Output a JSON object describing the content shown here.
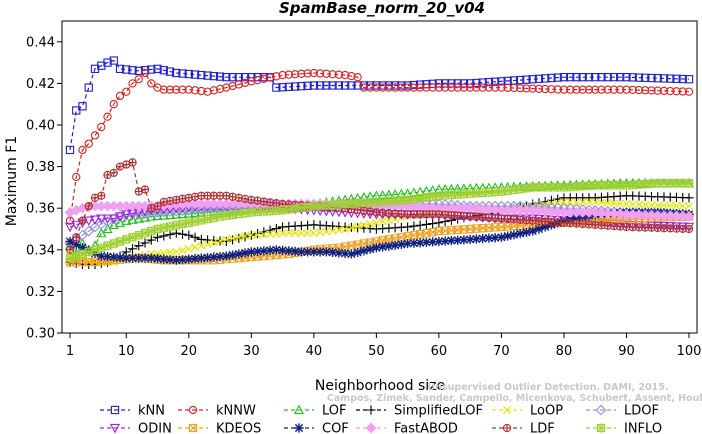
{
  "chart_data": {
    "type": "line",
    "title": "SpamBase_norm_20_v04",
    "xlabel": "Neighborhood size",
    "ylabel": "Maximum F1",
    "xlim": [
      1,
      100
    ],
    "ylim": [
      0.3,
      0.45
    ],
    "xticks": [
      1,
      10,
      20,
      30,
      40,
      50,
      60,
      70,
      80,
      90,
      100
    ],
    "yticks": [
      "0.30",
      "0.32",
      "0.34",
      "0.36",
      "0.38",
      "0.40",
      "0.42",
      "0.44"
    ],
    "grid": false,
    "legend_position": "bottom",
    "watermark": [
      "Campos, Zimek, Sander, Campello, Micenkova, Schubert, Assent, Houle",
      "Unsupervised Outlier Detection. DAMI, 2015."
    ],
    "series": [
      {
        "name": "kNN",
        "color": "#2020d0",
        "marker": "square",
        "x": [
          1,
          2,
          3,
          5,
          7,
          8,
          9,
          12,
          15,
          18,
          22,
          26,
          30,
          33,
          34,
          40,
          45,
          50,
          55,
          60,
          65,
          70,
          80,
          90,
          100
        ],
        "y": [
          0.388,
          0.407,
          0.409,
          0.427,
          0.43,
          0.431,
          0.427,
          0.426,
          0.427,
          0.425,
          0.424,
          0.423,
          0.423,
          0.423,
          0.418,
          0.419,
          0.419,
          0.419,
          0.419,
          0.42,
          0.42,
          0.421,
          0.423,
          0.423,
          0.422
        ]
      },
      {
        "name": "kNNW",
        "color": "#e02020",
        "marker": "circle",
        "x": [
          1,
          2,
          3,
          4,
          5,
          6,
          7,
          8,
          9,
          10,
          11,
          12,
          13,
          14,
          15,
          16,
          18,
          20,
          23,
          26,
          30,
          35,
          40,
          45,
          47,
          48,
          50,
          60,
          70,
          80,
          90,
          100
        ],
        "y": [
          0.354,
          0.375,
          0.388,
          0.391,
          0.395,
          0.399,
          0.404,
          0.41,
          0.414,
          0.416,
          0.42,
          0.422,
          0.425,
          0.42,
          0.418,
          0.417,
          0.417,
          0.417,
          0.416,
          0.418,
          0.421,
          0.424,
          0.425,
          0.424,
          0.423,
          0.418,
          0.418,
          0.418,
          0.418,
          0.417,
          0.417,
          0.416
        ]
      },
      {
        "name": "LOF",
        "color": "#20c020",
        "marker": "triangle",
        "x": [
          1,
          2,
          3,
          4,
          5,
          6,
          8,
          10,
          14,
          18,
          22,
          26,
          30,
          35,
          40,
          45,
          50,
          55,
          60,
          70,
          80,
          90,
          100
        ],
        "y": [
          0.342,
          0.338,
          0.343,
          0.34,
          0.342,
          0.348,
          0.352,
          0.354,
          0.356,
          0.357,
          0.358,
          0.359,
          0.36,
          0.362,
          0.362,
          0.364,
          0.366,
          0.367,
          0.369,
          0.37,
          0.371,
          0.372,
          0.372
        ]
      },
      {
        "name": "SimplifiedLOF",
        "color": "#000000",
        "marker": "plus",
        "x": [
          1,
          3,
          5,
          7,
          9,
          10,
          12,
          15,
          18,
          20,
          22,
          26,
          30,
          35,
          40,
          45,
          50,
          55,
          60,
          65,
          70,
          75,
          80,
          85,
          90,
          100
        ],
        "y": [
          0.334,
          0.333,
          0.333,
          0.334,
          0.337,
          0.339,
          0.342,
          0.346,
          0.348,
          0.347,
          0.345,
          0.344,
          0.347,
          0.351,
          0.352,
          0.351,
          0.35,
          0.351,
          0.353,
          0.356,
          0.358,
          0.362,
          0.365,
          0.365,
          0.366,
          0.365
        ]
      },
      {
        "name": "LoOP",
        "color": "#e6e600",
        "marker": "cross",
        "x": [
          1,
          3,
          5,
          8,
          10,
          14,
          18,
          22,
          26,
          30,
          35,
          40,
          45,
          50,
          55,
          60,
          65,
          70,
          75,
          80,
          85,
          90,
          100
        ],
        "y": [
          0.338,
          0.336,
          0.334,
          0.334,
          0.336,
          0.338,
          0.339,
          0.342,
          0.345,
          0.347,
          0.348,
          0.348,
          0.35,
          0.353,
          0.356,
          0.358,
          0.359,
          0.36,
          0.361,
          0.363,
          0.363,
          0.362,
          0.361
        ]
      },
      {
        "name": "LDOF",
        "color": "#9090e0",
        "marker": "diamond",
        "x": [
          1,
          3,
          5,
          8,
          10,
          15,
          20,
          25,
          30,
          35,
          40,
          45,
          50,
          55,
          60,
          65,
          70,
          75,
          80,
          85,
          90,
          100
        ],
        "y": [
          0.343,
          0.347,
          0.351,
          0.355,
          0.357,
          0.358,
          0.359,
          0.36,
          0.36,
          0.36,
          0.361,
          0.362,
          0.362,
          0.362,
          0.362,
          0.361,
          0.361,
          0.361,
          0.36,
          0.359,
          0.358,
          0.357
        ]
      },
      {
        "name": "ODIN",
        "color": "#a020e0",
        "marker": "triangle-down",
        "x": [
          1,
          2,
          4,
          6,
          8,
          10,
          14,
          18,
          22,
          26,
          30,
          35,
          40,
          45,
          50,
          55,
          60,
          65,
          70,
          75,
          80,
          85,
          90,
          100
        ],
        "y": [
          0.351,
          0.352,
          0.354,
          0.355,
          0.355,
          0.357,
          0.359,
          0.36,
          0.361,
          0.361,
          0.361,
          0.36,
          0.359,
          0.358,
          0.357,
          0.357,
          0.357,
          0.356,
          0.355,
          0.355,
          0.354,
          0.353,
          0.352,
          0.351
        ]
      },
      {
        "name": "KDEOS",
        "color": "#f0a020",
        "marker": "square-x",
        "x": [
          1,
          4,
          8,
          12,
          16,
          20,
          24,
          28,
          32,
          36,
          40,
          44,
          48,
          52,
          56,
          60,
          65,
          70,
          75,
          80,
          85,
          90,
          100
        ],
        "y": [
          0.334,
          0.334,
          0.335,
          0.336,
          0.335,
          0.335,
          0.335,
          0.336,
          0.337,
          0.338,
          0.34,
          0.341,
          0.343,
          0.345,
          0.347,
          0.349,
          0.35,
          0.351,
          0.352,
          0.353,
          0.354,
          0.355,
          0.356
        ]
      },
      {
        "name": "COF",
        "color": "#102080",
        "marker": "asterisk",
        "x": [
          1,
          3,
          6,
          10,
          14,
          18,
          22,
          26,
          30,
          34,
          38,
          42,
          46,
          50,
          55,
          60,
          65,
          70,
          75,
          80,
          85,
          90,
          95,
          100
        ],
        "y": [
          0.344,
          0.341,
          0.337,
          0.336,
          0.336,
          0.335,
          0.336,
          0.337,
          0.339,
          0.34,
          0.339,
          0.339,
          0.338,
          0.341,
          0.343,
          0.344,
          0.345,
          0.346,
          0.349,
          0.354,
          0.357,
          0.358,
          0.358,
          0.357
        ]
      },
      {
        "name": "FastABOD",
        "color": "#f0a0f0",
        "marker": "diamond-filled",
        "x": [
          1,
          3,
          5,
          8,
          10,
          15,
          20,
          25,
          30,
          35,
          40,
          45,
          50,
          55,
          60,
          65,
          70,
          75,
          80,
          85,
          90,
          100
        ],
        "y": [
          0.358,
          0.36,
          0.361,
          0.361,
          0.361,
          0.361,
          0.362,
          0.362,
          0.362,
          0.362,
          0.362,
          0.362,
          0.361,
          0.361,
          0.36,
          0.36,
          0.359,
          0.359,
          0.358,
          0.358,
          0.357,
          0.356
        ]
      },
      {
        "name": "LDF",
        "color": "#b03030",
        "marker": "circle-plus",
        "x": [
          1,
          2,
          3,
          4,
          5,
          6,
          7,
          8,
          9,
          10,
          11,
          12,
          13,
          14,
          15,
          16,
          18,
          20,
          22,
          24,
          26,
          28,
          30,
          35,
          40,
          45,
          50,
          55,
          60,
          65,
          70,
          75,
          80,
          85,
          90,
          100
        ],
        "y": [
          0.34,
          0.346,
          0.354,
          0.361,
          0.365,
          0.366,
          0.376,
          0.377,
          0.38,
          0.381,
          0.382,
          0.368,
          0.369,
          0.36,
          0.361,
          0.363,
          0.364,
          0.365,
          0.366,
          0.366,
          0.366,
          0.365,
          0.364,
          0.362,
          0.361,
          0.36,
          0.358,
          0.357,
          0.357,
          0.356,
          0.355,
          0.354,
          0.353,
          0.352,
          0.351,
          0.35
        ]
      },
      {
        "name": "INFLO",
        "color": "#a0d030",
        "marker": "star",
        "x": [
          1,
          5,
          10,
          15,
          20,
          25,
          30,
          35,
          40,
          45,
          50,
          55,
          60,
          65,
          70,
          75,
          80,
          85,
          90,
          95,
          100
        ],
        "y": [
          0.336,
          0.34,
          0.345,
          0.35,
          0.353,
          0.356,
          0.358,
          0.359,
          0.361,
          0.362,
          0.363,
          0.364,
          0.366,
          0.367,
          0.368,
          0.37,
          0.37,
          0.371,
          0.371,
          0.372,
          0.372
        ]
      }
    ]
  }
}
